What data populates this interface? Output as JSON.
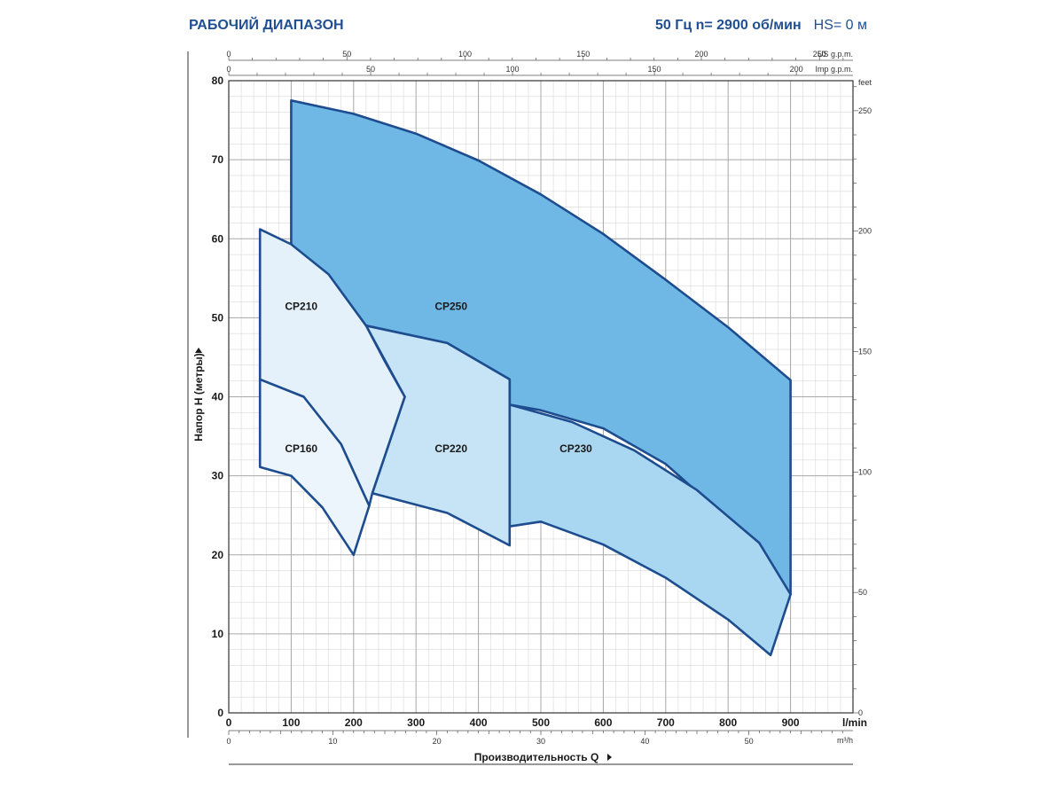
{
  "header": {
    "title": "РАБОЧИЙ ДИАПАЗОН",
    "params": "50 Гц   n= 2900 об/мин",
    "hs": "HS= 0 м"
  },
  "chart_data": {
    "type": "area",
    "title": "РАБОЧИЙ ДИАПАЗОН",
    "xlabel": "Производительность Q",
    "ylabel": "Напор H (метры)",
    "x_unit": "l/min",
    "xlim": [
      0,
      1000
    ],
    "ylim": [
      0,
      80
    ],
    "x_ticks": [
      0,
      100,
      200,
      300,
      400,
      500,
      600,
      700,
      800,
      900
    ],
    "y_ticks": [
      0,
      10,
      20,
      30,
      40,
      50,
      60,
      70,
      80
    ],
    "secondary_axes": {
      "us_gpm": {
        "label": "US g.p.m.",
        "ticks": [
          0,
          50,
          100,
          150,
          200,
          250
        ]
      },
      "imp_gpm": {
        "label": "Imp g.p.m.",
        "ticks": [
          0,
          50,
          100,
          150,
          200
        ]
      },
      "m3h": {
        "label": "m³/h",
        "ticks": [
          0,
          10,
          20,
          30,
          40,
          50
        ]
      },
      "feet": {
        "label": "feet",
        "ticks": [
          0,
          50,
          100,
          150,
          200,
          250
        ]
      }
    },
    "grid": true,
    "series": [
      {
        "name": "CP250",
        "color": "#6fb8e6",
        "outline": [
          [
            100,
            77.5
          ],
          [
            200,
            75.8
          ],
          [
            300,
            73.3
          ],
          [
            400,
            69.9
          ],
          [
            500,
            65.6
          ],
          [
            600,
            60.6
          ],
          [
            700,
            54.8
          ],
          [
            800,
            48.8
          ],
          [
            900,
            42.1
          ],
          [
            900,
            15
          ],
          [
            800,
            24.5
          ],
          [
            700,
            31.5
          ],
          [
            600,
            36
          ],
          [
            500,
            38.3
          ],
          [
            450,
            39
          ],
          [
            450,
            42.2
          ],
          [
            350,
            46.8
          ],
          [
            220,
            49
          ],
          [
            100,
            59.3
          ]
        ],
        "label_xy": [
          330,
          51
        ]
      },
      {
        "name": "CP230",
        "color": "#a9d7f1",
        "outline": [
          [
            450,
            39
          ],
          [
            550,
            36.8
          ],
          [
            650,
            33.2
          ],
          [
            750,
            28.2
          ],
          [
            850,
            21.5
          ],
          [
            900,
            15
          ],
          [
            868,
            7.3
          ],
          [
            800,
            11.8
          ],
          [
            700,
            17.1
          ],
          [
            600,
            21.3
          ],
          [
            500,
            24.2
          ],
          [
            450,
            23.6
          ]
        ],
        "label_xy": [
          530,
          33
        ]
      },
      {
        "name": "CP220",
        "color": "#c6e4f6",
        "outline": [
          [
            220,
            49
          ],
          [
            350,
            46.8
          ],
          [
            450,
            42.2
          ],
          [
            450,
            21.2
          ],
          [
            350,
            25.3
          ],
          [
            230,
            27.8
          ],
          [
            282,
            40
          ]
        ],
        "label_xy": [
          330,
          33
        ]
      },
      {
        "name": "CP210",
        "color": "#e4f0fa",
        "outline": [
          [
            50,
            61.2
          ],
          [
            100,
            59.3
          ],
          [
            160,
            55.5
          ],
          [
            220,
            49
          ],
          [
            250,
            44.5
          ],
          [
            282,
            40
          ],
          [
            230,
            27.8
          ],
          [
            225,
            26.2
          ],
          [
            180,
            34
          ],
          [
            120,
            40
          ],
          [
            50,
            42.2
          ]
        ],
        "label_xy": [
          90,
          51
        ]
      },
      {
        "name": "CP160",
        "color": "#edf5fc",
        "outline": [
          [
            50,
            42.2
          ],
          [
            120,
            40
          ],
          [
            180,
            34
          ],
          [
            225,
            26.2
          ],
          [
            200,
            20
          ],
          [
            150,
            26
          ],
          [
            100,
            30
          ],
          [
            50,
            31.1
          ]
        ],
        "label_xy": [
          90,
          33
        ]
      }
    ]
  }
}
